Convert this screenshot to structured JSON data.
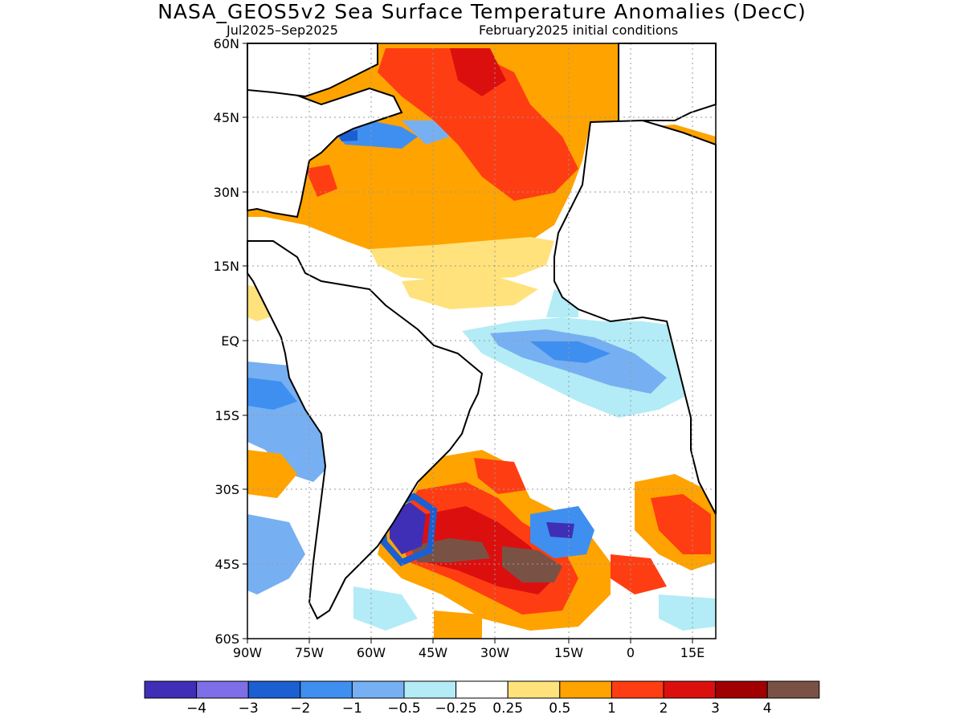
{
  "title": "NASA_GEOS5v2 Sea Surface Temperature Anomalies (DecC)",
  "subtitle_left": "Jul2025–Sep2025",
  "subtitle_right": "February2025 initial conditions",
  "lat_labels": [
    "60N",
    "45N",
    "30N",
    "15N",
    "EQ",
    "15S",
    "30S",
    "45S",
    "60S"
  ],
  "lon_labels": [
    "90W",
    "75W",
    "60W",
    "45W",
    "30W",
    "15W",
    "0",
    "15E"
  ],
  "colorbar": {
    "colors": [
      "#3f2fb6",
      "#7e6ee8",
      "#1b5fd2",
      "#3f8ff0",
      "#76b0f2",
      "#b3ecf6",
      "#ffffff",
      "#ffe27c",
      "#ffa300",
      "#ff3d12",
      "#dc0f0f",
      "#a00000",
      "#7a5245"
    ],
    "labels": [
      "−4",
      "−3",
      "−2",
      "−1",
      "−0.5",
      "−0.25",
      "0.25",
      "0.5",
      "1",
      "2",
      "3",
      "4"
    ]
  },
  "colors": {
    "land": "#ffffff",
    "coast": "#000000",
    "grid": "#999999"
  }
}
